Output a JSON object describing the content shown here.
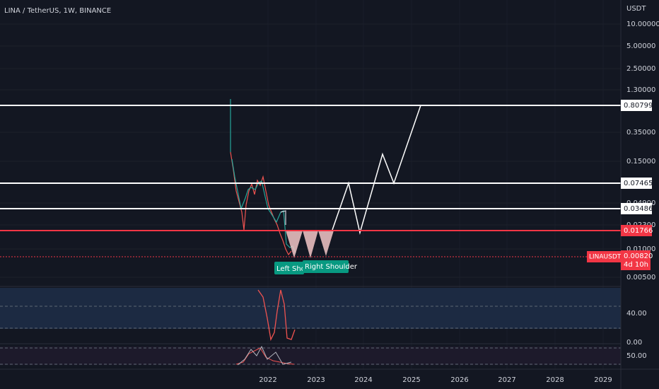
{
  "header": {
    "title": "LINA / TetherUS, 1W, BINANCE"
  },
  "price_axis": {
    "currency": "USDT",
    "ticks": [
      "10.00000",
      "5.00000",
      "2.50000",
      "1.30000",
      "0.35000",
      "0.15000",
      "0.04900",
      "0.02300",
      "0.01000",
      "0.00500"
    ]
  },
  "levels": [
    "0.80799",
    "0.07465",
    "0.03486",
    "0.01766"
  ],
  "symbol_label": {
    "name": "LINAUSDT",
    "price": "0.00820",
    "countdown": "4d 10h"
  },
  "annotations": [
    "Left Sho",
    "Right Shoulder"
  ],
  "indicator_axes": {
    "panel1": [
      "40.00",
      "0.00"
    ],
    "panel2": [
      "50.00"
    ]
  },
  "time_axis": [
    "2022",
    "2023",
    "2024",
    "2025",
    "2026",
    "2027",
    "2028",
    "2029"
  ]
}
